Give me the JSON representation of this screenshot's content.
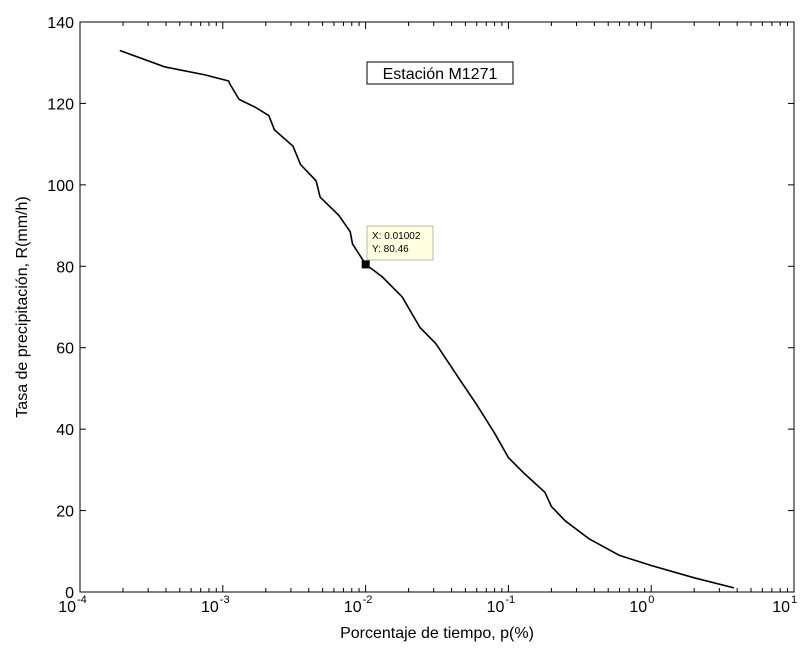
{
  "chart_data": {
    "type": "line",
    "xlabel": "Porcentaje de tiempo, p(%)",
    "ylabel": "Tasa de precipitación, R(mm/h)",
    "x_scale": "log",
    "xlim": [
      0.0001,
      10
    ],
    "ylim": [
      0,
      140
    ],
    "x_ticks": [
      {
        "base": "10",
        "exp": "-4"
      },
      {
        "base": "10",
        "exp": "-3"
      },
      {
        "base": "10",
        "exp": "-2"
      },
      {
        "base": "10",
        "exp": "-1"
      },
      {
        "base": "10",
        "exp": "0"
      },
      {
        "base": "10",
        "exp": "1"
      }
    ],
    "y_ticks": [
      "0",
      "20",
      "40",
      "60",
      "80",
      "100",
      "120",
      "140"
    ],
    "grid": false,
    "annotation_box": "Estación M1271",
    "datatip": {
      "x": 0.01002,
      "y": 80.46,
      "x_text": "X: 0.01002",
      "y_text": "Y: 80.46"
    },
    "series": [
      {
        "color": "#000000",
        "points": [
          [
            0.00019,
            133
          ],
          [
            0.00039,
            129
          ],
          [
            0.00075,
            127
          ],
          [
            0.0011,
            125.5
          ],
          [
            0.00112,
            124.8
          ],
          [
            0.0013,
            121
          ],
          [
            0.0017,
            119
          ],
          [
            0.0021,
            117
          ],
          [
            0.0023,
            113.5
          ],
          [
            0.0031,
            109.5
          ],
          [
            0.0035,
            105
          ],
          [
            0.0045,
            101
          ],
          [
            0.0048,
            97
          ],
          [
            0.0065,
            92.5
          ],
          [
            0.0078,
            88.5
          ],
          [
            0.0081,
            85.5
          ],
          [
            0.01002,
            80.46
          ],
          [
            0.013,
            77.5
          ],
          [
            0.018,
            72.5
          ],
          [
            0.024,
            65
          ],
          [
            0.031,
            61
          ],
          [
            0.045,
            52.5
          ],
          [
            0.06,
            46
          ],
          [
            0.08,
            39
          ],
          [
            0.1,
            33
          ],
          [
            0.13,
            29
          ],
          [
            0.18,
            24.5
          ],
          [
            0.2,
            21
          ],
          [
            0.25,
            17.5
          ],
          [
            0.37,
            13
          ],
          [
            0.6,
            9
          ],
          [
            1.0,
            6.5
          ],
          [
            2.0,
            3.5
          ],
          [
            3.8,
            1
          ]
        ]
      }
    ]
  }
}
